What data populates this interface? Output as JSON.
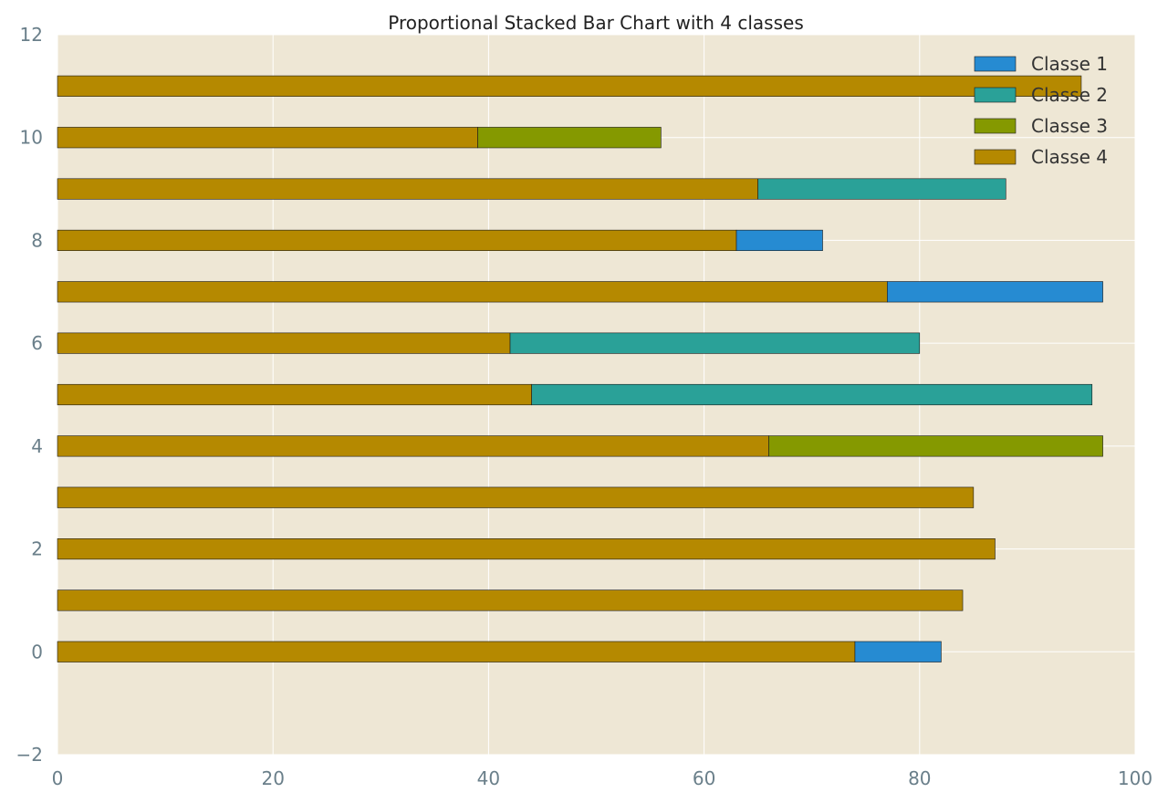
{
  "chart_data": {
    "type": "bar",
    "orientation": "horizontal",
    "stacked": true,
    "title": "Proportional Stacked Bar Chart with 4 classes",
    "xlabel": "",
    "ylabel": "",
    "xlim": [
      0,
      100
    ],
    "ylim": [
      -2,
      12
    ],
    "xticks": [
      "0",
      "20",
      "40",
      "60",
      "80",
      "100"
    ],
    "yticks": [
      "−2",
      "0",
      "2",
      "4",
      "6",
      "8",
      "10",
      "12"
    ],
    "grid": true,
    "legend_position": "top-right",
    "background": "#eee7d5",
    "categories": [
      0,
      1,
      2,
      3,
      4,
      5,
      6,
      7,
      8,
      9,
      10,
      11
    ],
    "series": [
      {
        "name": "Classe 4",
        "color": "#b58900",
        "values": [
          74,
          84,
          87,
          85,
          66,
          44,
          42,
          77,
          63,
          65,
          39,
          95
        ]
      },
      {
        "name": "Classe 3",
        "color": "#859900",
        "values": [
          0,
          0,
          0,
          0,
          31,
          0,
          0,
          0,
          0,
          0,
          17,
          0
        ]
      },
      {
        "name": "Classe 2",
        "color": "#2aa198",
        "values": [
          0,
          0,
          0,
          0,
          0,
          52,
          38,
          0,
          0,
          23,
          0,
          0
        ]
      },
      {
        "name": "Classe 1",
        "color": "#268bd2",
        "values": [
          8,
          0,
          0,
          0,
          0,
          0,
          0,
          20,
          8,
          0,
          0,
          0
        ]
      }
    ],
    "legend": [
      "Classe 1",
      "Classe 2",
      "Classe 3",
      "Classe 4"
    ]
  }
}
